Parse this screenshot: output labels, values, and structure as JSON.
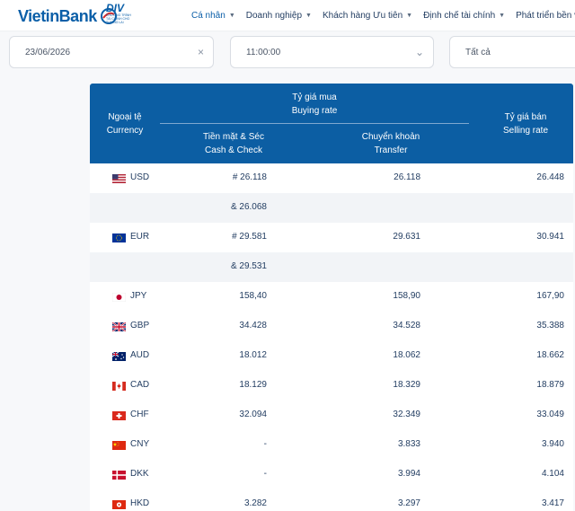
{
  "brand": {
    "logo_text": "VietinBank",
    "div_logo_text": "DIV",
    "div_logo_sub": "CHƯƠNG TRÌNH TÀI CHÍNH CHO TƯƠNG LAI"
  },
  "nav": {
    "items": [
      {
        "label": "Cá nhân",
        "active": true
      },
      {
        "label": "Doanh nghiệp",
        "active": false
      },
      {
        "label": "Khách hàng Ưu tiên",
        "active": false
      },
      {
        "label": "Định chế tài chính",
        "active": false
      },
      {
        "label": "Phát triển bền vững",
        "active": false
      }
    ]
  },
  "filters": {
    "date": "23/06/2026",
    "date_clear": "×",
    "time": "11:00:00",
    "time_chevron": "⌄",
    "type": "Tất cả"
  },
  "table": {
    "headers": {
      "currency_vi": "Ngoại tệ",
      "currency_en": "Currency",
      "buying_vi": "Tỷ giá mua",
      "buying_en": "Buying rate",
      "cash_vi": "Tiền mặt & Séc",
      "cash_en": "Cash & Check",
      "transfer_vi": "Chuyển khoản",
      "transfer_en": "Transfer",
      "selling_vi": "Tỷ giá bán",
      "selling_en": "Selling rate"
    },
    "rows": [
      {
        "code": "USD",
        "flag": "us-flag-icon",
        "cash": "# 26.118",
        "transfer": "26.118",
        "sell": "26.448"
      },
      {
        "code": "",
        "flag": "",
        "cash": "& 26.068",
        "transfer": "",
        "sell": ""
      },
      {
        "code": "EUR",
        "flag": "eu-flag-icon",
        "cash": "# 29.581",
        "transfer": "29.631",
        "sell": "30.941"
      },
      {
        "code": "",
        "flag": "",
        "cash": "& 29.531",
        "transfer": "",
        "sell": ""
      },
      {
        "code": "JPY",
        "flag": "jp-flag-icon",
        "cash": "158,40",
        "transfer": "158,90",
        "sell": "167,90"
      },
      {
        "code": "GBP",
        "flag": "gb-flag-icon",
        "cash": "34.428",
        "transfer": "34.528",
        "sell": "35.388"
      },
      {
        "code": "AUD",
        "flag": "au-flag-icon",
        "cash": "18.012",
        "transfer": "18.062",
        "sell": "18.662"
      },
      {
        "code": "CAD",
        "flag": "ca-flag-icon",
        "cash": "18.129",
        "transfer": "18.329",
        "sell": "18.879"
      },
      {
        "code": "CHF",
        "flag": "ch-flag-icon",
        "cash": "32.094",
        "transfer": "32.349",
        "sell": "33.049"
      },
      {
        "code": "CNY",
        "flag": "cn-flag-icon",
        "cash": "-",
        "transfer": "3.833",
        "sell": "3.940"
      },
      {
        "code": "DKK",
        "flag": "dk-flag-icon",
        "cash": "-",
        "transfer": "3.994",
        "sell": "4.104"
      },
      {
        "code": "HKD",
        "flag": "hk-flag-icon",
        "cash": "3.282",
        "transfer": "3.297",
        "sell": "3.417"
      }
    ]
  },
  "colors": {
    "header_bg": "#0c5ea3",
    "brand_blue": "#0b5fa8",
    "row_alt": "#f2f4f7"
  }
}
